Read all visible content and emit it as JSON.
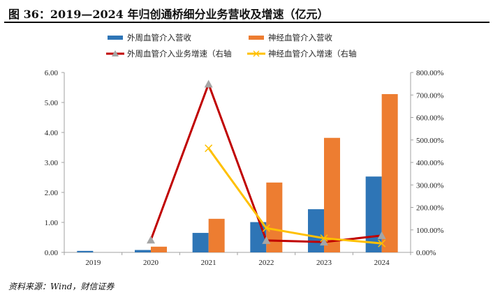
{
  "title": "图 36：2019—2024 年归创通桥细分业务营收及增速（亿元）",
  "source": "资料来源：Wind，财信证券",
  "chart_data": {
    "type": "bar+line",
    "categories": [
      "2019",
      "2020",
      "2021",
      "2022",
      "2023",
      "2024"
    ],
    "bar_series": [
      {
        "name": "外周血管介入营收",
        "color": "#2E75B6",
        "values": [
          0.05,
          0.08,
          0.65,
          1.01,
          1.44,
          2.53
        ]
      },
      {
        "name": "神经血管介入营收",
        "color": "#ED7D31",
        "values": [
          null,
          0.19,
          1.12,
          2.33,
          3.82,
          5.28
        ]
      }
    ],
    "line_series": [
      {
        "name": "外周血管介入业务增速（右轴",
        "color": "#C00000",
        "marker": "triangle",
        "marker_color": "#A5A5A5",
        "axis": "right",
        "values": [
          null,
          55,
          749,
          53,
          46,
          75
        ]
      },
      {
        "name": "神经血管介入增速（右轴",
        "color": "#FFC000",
        "marker": "x",
        "axis": "right",
        "values": [
          null,
          null,
          463,
          108,
          63,
          40
        ]
      }
    ],
    "left_axis": {
      "ylim": [
        0,
        6
      ],
      "ticks": [
        "0.00",
        "1.00",
        "2.00",
        "3.00",
        "4.00",
        "5.00",
        "6.00"
      ]
    },
    "right_axis": {
      "ylim": [
        0,
        800
      ],
      "ticks": [
        "0.00%",
        "100.00%",
        "200.00%",
        "300.00%",
        "400.00%",
        "500.00%",
        "600.00%",
        "700.00%",
        "800.00%"
      ]
    },
    "legend_placement": "top",
    "grid": false
  }
}
